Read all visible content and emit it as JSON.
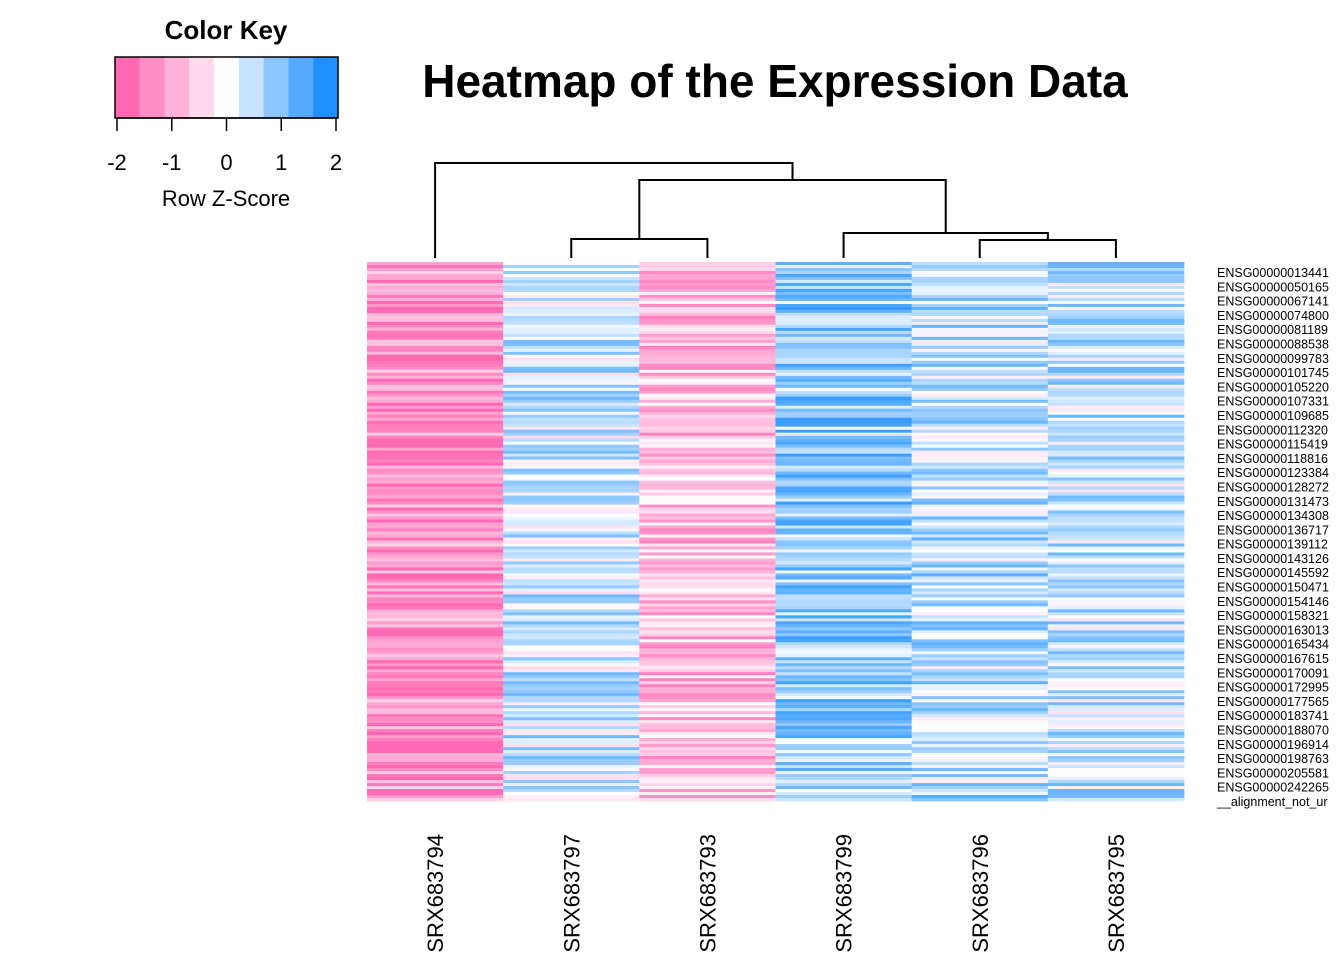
{
  "chart_data": {
    "type": "heatmap",
    "title": "Heatmap of the Expression Data",
    "columns": [
      "SRX683794",
      "SRX683797",
      "SRX683793",
      "SRX683799",
      "SRX683796",
      "SRX683795"
    ],
    "row_labels": [
      "ENSG00000013441",
      "ENSG00000050165",
      "ENSG00000067141",
      "ENSG00000074800",
      "ENSG00000081189",
      "ENSG00000088538",
      "ENSG00000099783",
      "ENSG00000101745",
      "ENSG00000105220",
      "ENSG00000107331",
      "ENSG00000109685",
      "ENSG00000112320",
      "ENSG00000115419",
      "ENSG00000118816",
      "ENSG00000123384",
      "ENSG00000128272",
      "ENSG00000131473",
      "ENSG00000134308",
      "ENSG00000136717",
      "ENSG00000139112",
      "ENSG00000143126",
      "ENSG00000145592",
      "ENSG00000150471",
      "ENSG00000154146",
      "ENSG00000158321",
      "ENSG00000163013",
      "ENSG00000165434",
      "ENSG00000167615",
      "ENSG00000170091",
      "ENSG00000172995",
      "ENSG00000177565",
      "ENSG00000183741",
      "ENSG00000188070",
      "ENSG00000196914",
      "ENSG00000198763",
      "ENSG00000205581",
      "ENSG00000242265",
      "__alignment_not_ur"
    ],
    "column_mean_zscore": [
      -1.5,
      0.4,
      -0.8,
      0.9,
      0.6,
      0.5
    ],
    "dendrogram": {
      "merges": [
        {
          "left": "SRX683797",
          "right": "SRX683793"
        },
        {
          "left": "SRX683796",
          "right": "SRX683795"
        },
        {
          "left": "SRX683799",
          "right": "SRX683796+SRX683795"
        },
        {
          "left": "SRX683797+SRX683793",
          "right": "SRX683799+SRX683796+SRX683795"
        },
        {
          "left": "SRX683794",
          "right": "all-others"
        }
      ]
    },
    "color_key": {
      "title": "Color Key",
      "xlabel": "Row Z-Score",
      "ticks": [
        "-2",
        "-1",
        "0",
        "1",
        "2"
      ],
      "range": [
        -2,
        2
      ],
      "colors": [
        "#FF69B4",
        "#FF8DC6",
        "#FFB2D9",
        "#FFD9EC",
        "#FFFFFF",
        "#C6E2FF",
        "#8DC6FF",
        "#55AAFF",
        "#1E90FF"
      ]
    }
  }
}
